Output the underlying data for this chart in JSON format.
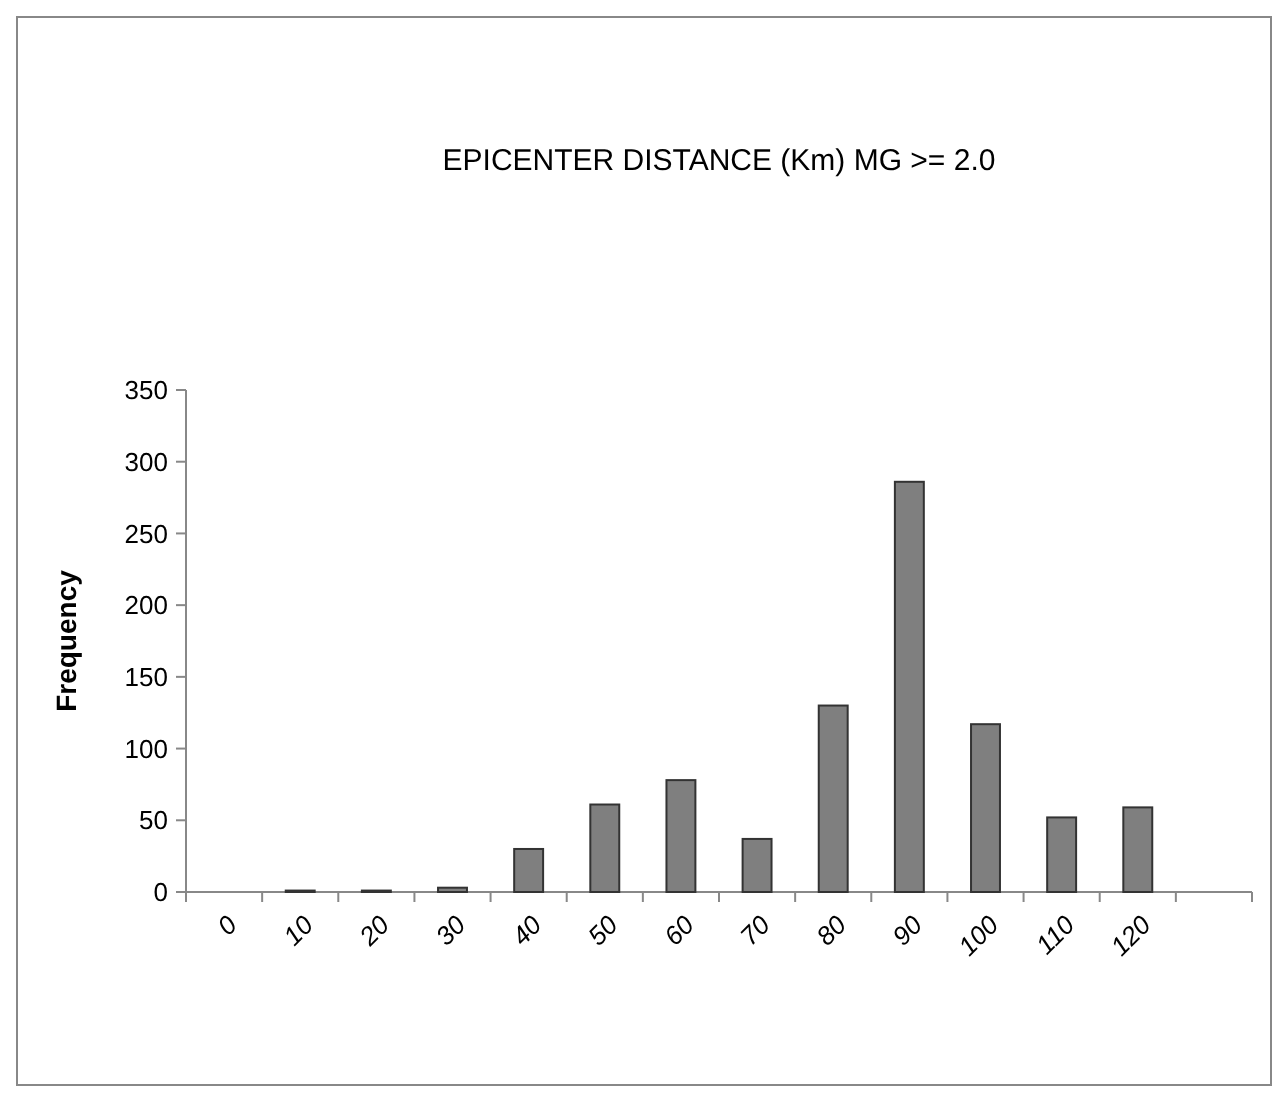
{
  "chart_data": {
    "type": "bar",
    "title": "EPICENTER DISTANCE (Km) MG >= 2.0",
    "ylabel": "Frequency",
    "categories": [
      "0",
      "10",
      "20",
      "30",
      "40",
      "50",
      "60",
      "70",
      "80",
      "90",
      "100",
      "110",
      "120",
      null
    ],
    "series": [
      {
        "color": "#7f7f7f",
        "values": [
          0,
          1,
          1,
          3,
          30,
          61,
          78,
          37,
          130,
          286,
          117,
          52,
          59,
          null
        ]
      }
    ],
    "ylim": [
      0,
      350
    ],
    "yticks": [
      0,
      50,
      100,
      150,
      200,
      250,
      300,
      350
    ],
    "grid": false
  }
}
